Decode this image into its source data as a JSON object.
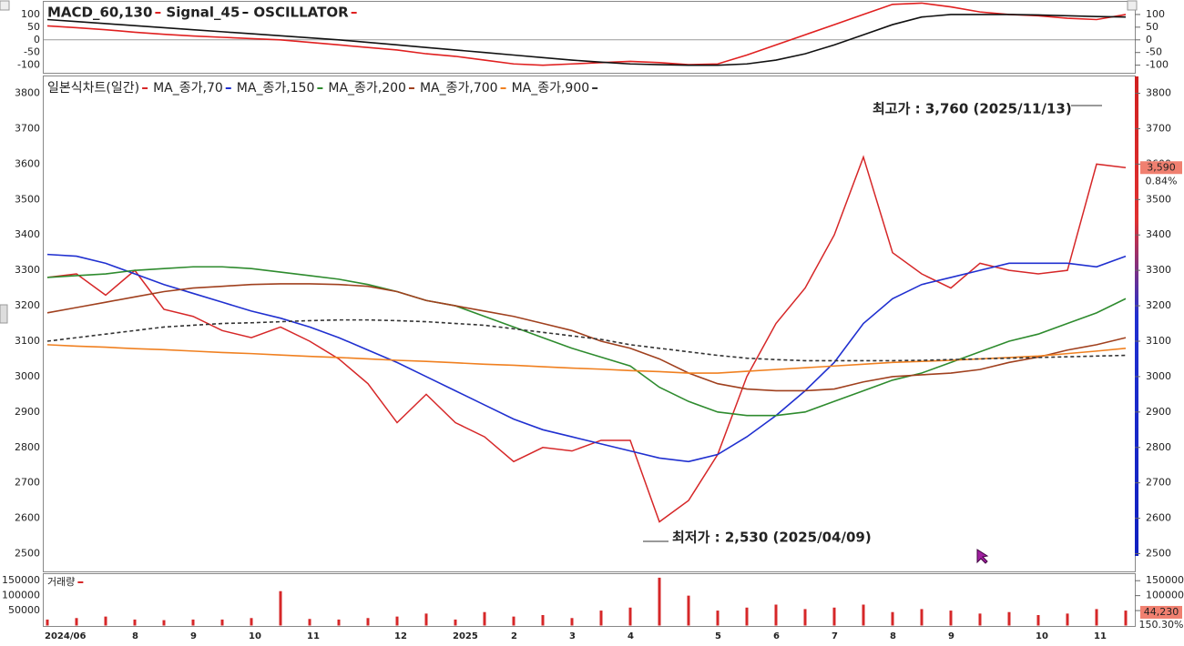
{
  "chart_data": [
    {
      "type": "line",
      "series": [
        {
          "name": "MACD_60,130",
          "color": "#e02020",
          "values": [
            55,
            48,
            40,
            30,
            22,
            15,
            10,
            5,
            0,
            -10,
            -20,
            -30,
            -40,
            -55,
            -65,
            -80,
            -95,
            -100,
            -95,
            -90,
            -85,
            -90,
            -98,
            -95,
            -60,
            -20,
            20,
            60,
            100,
            140,
            145,
            130,
            110,
            100,
            95,
            85,
            80,
            100
          ]
        },
        {
          "name": "Signal_45",
          "color": "#111111",
          "values": [
            80,
            72,
            64,
            56,
            48,
            40,
            32,
            24,
            16,
            8,
            0,
            -10,
            -20,
            -30,
            -40,
            -50,
            -60,
            -70,
            -80,
            -88,
            -95,
            -98,
            -100,
            -100,
            -95,
            -80,
            -55,
            -20,
            20,
            60,
            90,
            100,
            100,
            100,
            98,
            95,
            92,
            90
          ]
        }
      ],
      "legend_extra": {
        "name": "OSCILLATOR",
        "color": "#e02020"
      },
      "ylim": [
        -130,
        150
      ],
      "yticks": [
        100,
        50,
        0,
        -50,
        -100
      ]
    },
    {
      "type": "line",
      "series": [
        {
          "name": "일본식차트(일간)",
          "color": "#d62728",
          "values": [
            3280,
            3290,
            3230,
            3300,
            3190,
            3170,
            3130,
            3110,
            3140,
            3100,
            3050,
            2980,
            2870,
            2950,
            2870,
            2830,
            2760,
            2800,
            2790,
            2820,
            2820,
            2590,
            2650,
            2780,
            3000,
            3150,
            3250,
            3400,
            3620,
            3350,
            3290,
            3250,
            3320,
            3300,
            3290,
            3300,
            3600,
            3590
          ]
        },
        {
          "name": "MA_종가,70",
          "color": "#2030d0",
          "values": [
            3345,
            3340,
            3320,
            3290,
            3260,
            3235,
            3210,
            3185,
            3165,
            3140,
            3110,
            3075,
            3040,
            3000,
            2960,
            2920,
            2880,
            2850,
            2830,
            2810,
            2790,
            2770,
            2760,
            2780,
            2830,
            2890,
            2960,
            3040,
            3150,
            3220,
            3260,
            3280,
            3300,
            3320,
            3320,
            3320,
            3310,
            3340
          ]
        },
        {
          "name": "MA_종가,150",
          "color": "#2e8b2e",
          "values": [
            3280,
            3285,
            3290,
            3300,
            3305,
            3310,
            3310,
            3305,
            3295,
            3285,
            3275,
            3260,
            3240,
            3215,
            3200,
            3170,
            3140,
            3110,
            3080,
            3055,
            3030,
            2970,
            2930,
            2900,
            2890,
            2890,
            2900,
            2930,
            2960,
            2990,
            3010,
            3040,
            3070,
            3100,
            3120,
            3150,
            3180,
            3220
          ]
        },
        {
          "name": "MA_종가,200",
          "color": "#a0401e",
          "values": [
            3180,
            3195,
            3210,
            3225,
            3240,
            3250,
            3255,
            3260,
            3262,
            3262,
            3260,
            3255,
            3240,
            3215,
            3200,
            3185,
            3170,
            3150,
            3130,
            3100,
            3080,
            3050,
            3010,
            2980,
            2965,
            2960,
            2960,
            2965,
            2985,
            3000,
            3005,
            3010,
            3020,
            3040,
            3055,
            3075,
            3090,
            3110
          ]
        },
        {
          "name": "MA_종가,700",
          "color": "#f08020",
          "values": [
            3090,
            3086,
            3083,
            3079,
            3076,
            3072,
            3068,
            3065,
            3061,
            3057,
            3054,
            3050,
            3046,
            3043,
            3039,
            3035,
            3032,
            3028,
            3024,
            3021,
            3017,
            3014,
            3010,
            3010,
            3015,
            3020,
            3025,
            3030,
            3035,
            3040,
            3043,
            3046,
            3050,
            3054,
            3058,
            3065,
            3072,
            3080
          ]
        },
        {
          "name": "MA_종가,900",
          "color": "#333333",
          "dashed": true,
          "values": [
            3100,
            3110,
            3120,
            3130,
            3140,
            3145,
            3150,
            3152,
            3155,
            3158,
            3160,
            3160,
            3158,
            3155,
            3150,
            3145,
            3135,
            3125,
            3115,
            3105,
            3090,
            3080,
            3070,
            3060,
            3052,
            3048,
            3045,
            3045,
            3045,
            3045,
            3046,
            3048,
            3050,
            3052,
            3054,
            3056,
            3058,
            3060
          ]
        }
      ],
      "annotations": [
        {
          "text": "최고가 : 3,760 (2025/11/13)",
          "color": "#e02020"
        },
        {
          "text": "최저가 : 2,530 (2025/04/09)",
          "color": "#2030c0"
        }
      ],
      "last_price": {
        "value": 3590,
        "label": "3,590"
      },
      "change": "0.84%",
      "ylim": [
        2450,
        3845
      ],
      "yticks": [
        2500,
        2600,
        2700,
        2800,
        2900,
        3000,
        3100,
        3200,
        3300,
        3400,
        3500,
        3600,
        3700,
        3800
      ]
    },
    {
      "type": "bar",
      "categories": [
        "2024/06",
        null,
        null,
        "8",
        null,
        "9",
        null,
        "10",
        null,
        "11",
        null,
        null,
        "12",
        null,
        "2025",
        null,
        "2",
        null,
        "3",
        null,
        "4",
        null,
        null,
        "5",
        null,
        "6",
        null,
        "7",
        null,
        "8",
        null,
        "9",
        null,
        null,
        "10",
        null,
        "11",
        null
      ],
      "series": [
        {
          "name": "거래량",
          "color": "#d62728",
          "values": [
            20000,
            25000,
            30000,
            20000,
            18000,
            20000,
            20000,
            25000,
            115000,
            22000,
            20000,
            25000,
            30000,
            40000,
            20000,
            45000,
            30000,
            35000,
            25000,
            50000,
            60000,
            160000,
            100000,
            50000,
            60000,
            70000,
            55000,
            60000,
            70000,
            45000,
            55000,
            50000,
            40000,
            45000,
            35000,
            40000,
            55000,
            50000
          ]
        }
      ],
      "last_volume": {
        "value": 44230,
        "label": "44,230"
      },
      "change": "150.30%",
      "ylim": [
        0,
        175000
      ],
      "yticks": [
        50000,
        100000,
        150000
      ]
    }
  ]
}
